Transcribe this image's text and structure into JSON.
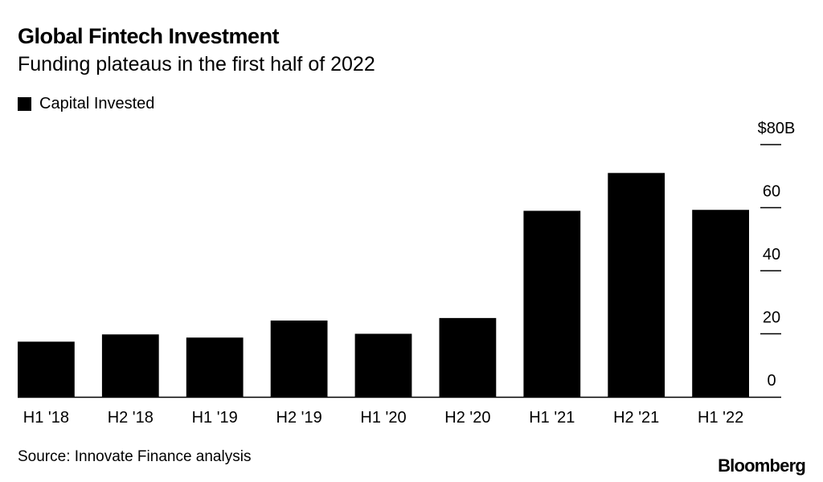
{
  "header": {
    "title": "Global Fintech Investment",
    "subtitle": "Funding plateaus in the first half of 2022"
  },
  "legend": {
    "label": "Capital Invested"
  },
  "footer": {
    "source": "Source: Innovate Finance analysis",
    "brand": "Bloomberg"
  },
  "chart_data": {
    "type": "bar",
    "title": "Global Fintech Investment",
    "subtitle": "Funding plateaus in the first half of 2022",
    "categories": [
      "H1 '18",
      "H2 '18",
      "H1 '19",
      "H2 '19",
      "H1 '20",
      "H2 '20",
      "H1 '21",
      "H2 '21",
      "H1 '22"
    ],
    "series": [
      {
        "name": "Capital Invested",
        "values": [
          17.5,
          19.8,
          18.8,
          24.2,
          20.0,
          25.0,
          59.0,
          71.0,
          59.3
        ]
      }
    ],
    "ylim": [
      0,
      80
    ],
    "yticks": [
      {
        "value": 0,
        "label": "0"
      },
      {
        "value": 20,
        "label": "20"
      },
      {
        "value": 40,
        "label": "40"
      },
      {
        "value": 60,
        "label": "60"
      },
      {
        "value": 80,
        "label": "$80B"
      }
    ],
    "xlabel": "",
    "ylabel": "",
    "legend_position": "top-left",
    "grid": false,
    "colors": {
      "bar": "#000000",
      "axis": "#000000"
    }
  }
}
